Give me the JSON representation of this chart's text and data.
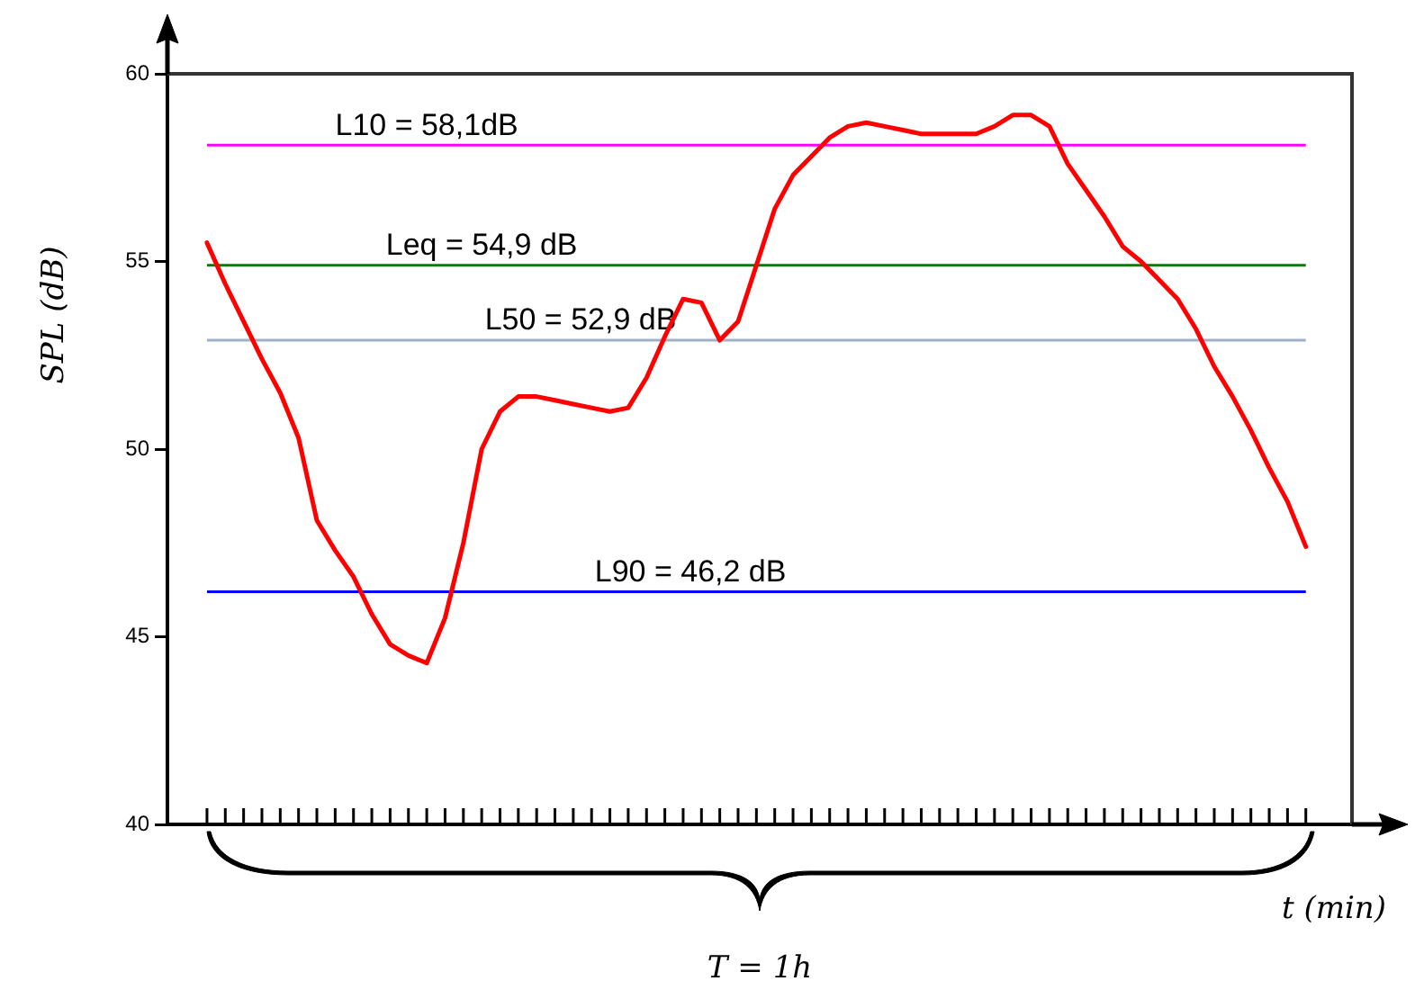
{
  "chart_data": {
    "type": "line",
    "ylabel": "SPL (dB)",
    "xlabel": "t (min)",
    "annotations": [
      "T = 1h"
    ],
    "categories": [
      null,
      null,
      null,
      null,
      null,
      null,
      null,
      null,
      null,
      null,
      null,
      null,
      null,
      null,
      null,
      null,
      null,
      null,
      null,
      null,
      null,
      null,
      null,
      null,
      null,
      null,
      null,
      null,
      null,
      null,
      null,
      null,
      null,
      null,
      null,
      null,
      null,
      null,
      null,
      null,
      null,
      null,
      null,
      null,
      null,
      null,
      null,
      null,
      null,
      null,
      null,
      null,
      null,
      null,
      null,
      null,
      null,
      null,
      null,
      null,
      null
    ],
    "ylim": [
      40,
      60
    ],
    "yticks": [
      40,
      45,
      50,
      55,
      60
    ],
    "tick_labels": "y",
    "legend": false,
    "marker": "none",
    "line_style": "solid",
    "series": [
      {
        "color": "#ff0000",
        "values": [
          55.5,
          54.4,
          53.4,
          52.4,
          51.5,
          50.3,
          48.1,
          47.3,
          46.6,
          45.6,
          44.8,
          44.5,
          44.3,
          45.5,
          47.5,
          50.0,
          51.0,
          51.4,
          51.4,
          51.3,
          51.2,
          51.1,
          51.0,
          51.1,
          51.9,
          53.0,
          54.0,
          53.9,
          52.9,
          53.4,
          54.9,
          56.4,
          57.3,
          57.8,
          58.3,
          58.6,
          58.7,
          58.6,
          58.5,
          58.4,
          58.4,
          58.4,
          58.4,
          58.6,
          58.9,
          58.9,
          58.6,
          57.6,
          56.9,
          56.2,
          55.4,
          55.0,
          54.5,
          54.0,
          53.2,
          52.2,
          51.4,
          50.5,
          49.5,
          48.6,
          47.4
        ]
      }
    ],
    "ref_lines": [
      {
        "axis": "y",
        "value": 58.1,
        "label": "L10 = 58,1dB",
        "color": "#ff00ff"
      },
      {
        "axis": "y",
        "value": 54.9,
        "label": "Leq = 54,9 dB",
        "color": "#008000"
      },
      {
        "axis": "y",
        "value": 52.9,
        "label": "L50 = 52,9 dB",
        "color": "#a0b0c8"
      },
      {
        "axis": "y",
        "value": 46.2,
        "label": "L90 = 46,2 dB",
        "color": "#0000ff"
      }
    ]
  }
}
